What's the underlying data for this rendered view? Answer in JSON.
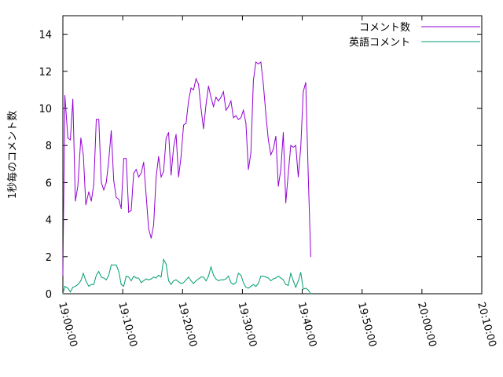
{
  "chart_data": {
    "type": "line",
    "title": "",
    "xlabel": "",
    "ylabel": "1秒毎のコメント数",
    "ylim": [
      0,
      15
    ],
    "yticks": [
      "0",
      "2",
      "4",
      "6",
      "8",
      "10",
      "12",
      "14"
    ],
    "xlim": [
      "19:00:00",
      "20:10:00"
    ],
    "xticks": [
      "19:00:00",
      "19:10:00",
      "19:20:00",
      "19:30:00",
      "19:40:00",
      "19:50:00",
      "20:00:00",
      "20:10:00"
    ],
    "grid": false,
    "legend_position": "top-right",
    "series": [
      {
        "name": "コメント数",
        "color": "#9400d3",
        "points": [
          [
            "19:00:00",
            1.0
          ],
          [
            "19:00:20",
            10.7
          ],
          [
            "19:00:50",
            8.4
          ],
          [
            "19:01:15",
            8.3
          ],
          [
            "19:01:40",
            10.5
          ],
          [
            "19:02:05",
            5.0
          ],
          [
            "19:02:30",
            5.8
          ],
          [
            "19:03:00",
            8.4
          ],
          [
            "19:03:25",
            7.5
          ],
          [
            "19:03:50",
            4.8
          ],
          [
            "19:04:20",
            5.5
          ],
          [
            "19:04:45",
            5.0
          ],
          [
            "19:05:10",
            5.9
          ],
          [
            "19:05:35",
            9.4
          ],
          [
            "19:06:00",
            9.4
          ],
          [
            "19:06:25",
            6.0
          ],
          [
            "19:06:50",
            5.6
          ],
          [
            "19:07:15",
            6.0
          ],
          [
            "19:07:40",
            7.2
          ],
          [
            "19:08:05",
            8.8
          ],
          [
            "19:08:30",
            6.1
          ],
          [
            "19:08:55",
            5.2
          ],
          [
            "19:09:20",
            5.1
          ],
          [
            "19:09:45",
            4.6
          ],
          [
            "19:10:10",
            7.3
          ],
          [
            "19:10:35",
            7.3
          ],
          [
            "19:11:00",
            4.4
          ],
          [
            "19:11:25",
            4.5
          ],
          [
            "19:11:50",
            6.5
          ],
          [
            "19:12:15",
            6.7
          ],
          [
            "19:12:40",
            6.3
          ],
          [
            "19:13:05",
            6.5
          ],
          [
            "19:13:30",
            7.1
          ],
          [
            "19:13:55",
            5.3
          ],
          [
            "19:14:20",
            3.5
          ],
          [
            "19:14:45",
            3.0
          ],
          [
            "19:15:10",
            3.7
          ],
          [
            "19:15:35",
            6.3
          ],
          [
            "19:16:00",
            7.4
          ],
          [
            "19:16:25",
            6.3
          ],
          [
            "19:16:50",
            6.6
          ],
          [
            "19:17:15",
            8.4
          ],
          [
            "19:17:40",
            8.7
          ],
          [
            "19:18:05",
            6.4
          ],
          [
            "19:18:30",
            7.9
          ],
          [
            "19:18:55",
            8.6
          ],
          [
            "19:19:20",
            6.3
          ],
          [
            "19:19:45",
            7.4
          ],
          [
            "19:20:10",
            9.1
          ],
          [
            "19:20:35",
            9.2
          ],
          [
            "19:21:00",
            10.4
          ],
          [
            "19:21:25",
            11.1
          ],
          [
            "19:21:50",
            11.0
          ],
          [
            "19:22:15",
            11.6
          ],
          [
            "19:22:40",
            11.3
          ],
          [
            "19:23:05",
            10.0
          ],
          [
            "19:23:30",
            8.9
          ],
          [
            "19:23:55",
            10.2
          ],
          [
            "19:24:20",
            11.2
          ],
          [
            "19:24:45",
            10.6
          ],
          [
            "19:25:10",
            10.1
          ],
          [
            "19:25:35",
            10.6
          ],
          [
            "19:26:00",
            10.4
          ],
          [
            "19:26:25",
            10.6
          ],
          [
            "19:26:50",
            10.9
          ],
          [
            "19:27:15",
            9.9
          ],
          [
            "19:27:40",
            10.1
          ],
          [
            "19:28:05",
            10.4
          ],
          [
            "19:28:30",
            9.5
          ],
          [
            "19:28:55",
            9.6
          ],
          [
            "19:29:20",
            9.4
          ],
          [
            "19:29:45",
            9.5
          ],
          [
            "19:30:10",
            9.9
          ],
          [
            "19:30:35",
            9.2
          ],
          [
            "19:31:00",
            6.7
          ],
          [
            "19:31:25",
            7.6
          ],
          [
            "19:31:50",
            11.5
          ],
          [
            "19:32:15",
            12.5
          ],
          [
            "19:32:40",
            12.4
          ],
          [
            "19:33:05",
            12.5
          ],
          [
            "19:33:30",
            11.3
          ],
          [
            "19:33:55",
            9.7
          ],
          [
            "19:34:20",
            8.3
          ],
          [
            "19:34:45",
            7.5
          ],
          [
            "19:35:10",
            7.8
          ],
          [
            "19:35:35",
            8.5
          ],
          [
            "19:36:00",
            5.8
          ],
          [
            "19:36:25",
            6.7
          ],
          [
            "19:36:50",
            8.7
          ],
          [
            "19:37:15",
            4.9
          ],
          [
            "19:37:40",
            6.5
          ],
          [
            "19:38:05",
            8.0
          ],
          [
            "19:38:30",
            7.9
          ],
          [
            "19:38:55",
            8.0
          ],
          [
            "19:39:20",
            6.3
          ],
          [
            "19:39:45",
            7.9
          ],
          [
            "19:40:10",
            10.9
          ],
          [
            "19:40:35",
            11.4
          ],
          [
            "19:41:00",
            6.4
          ],
          [
            "19:41:25",
            2.0
          ]
        ]
      },
      {
        "name": "英語コメント",
        "color": "#009e73",
        "points": [
          [
            "19:00:00",
            0.0
          ],
          [
            "19:00:20",
            0.4
          ],
          [
            "19:00:50",
            0.3
          ],
          [
            "19:01:15",
            0.1
          ],
          [
            "19:01:40",
            0.35
          ],
          [
            "19:02:05",
            0.4
          ],
          [
            "19:02:30",
            0.5
          ],
          [
            "19:03:00",
            0.7
          ],
          [
            "19:03:25",
            1.1
          ],
          [
            "19:03:50",
            0.7
          ],
          [
            "19:04:20",
            0.4
          ],
          [
            "19:04:45",
            0.5
          ],
          [
            "19:05:10",
            0.5
          ],
          [
            "19:05:35",
            1.0
          ],
          [
            "19:06:00",
            1.2
          ],
          [
            "19:06:25",
            0.9
          ],
          [
            "19:06:50",
            0.85
          ],
          [
            "19:07:15",
            0.75
          ],
          [
            "19:07:40",
            1.0
          ],
          [
            "19:08:05",
            1.55
          ],
          [
            "19:08:30",
            1.55
          ],
          [
            "19:08:55",
            1.55
          ],
          [
            "19:09:20",
            1.2
          ],
          [
            "19:09:45",
            0.5
          ],
          [
            "19:10:10",
            0.4
          ],
          [
            "19:10:35",
            0.95
          ],
          [
            "19:11:00",
            0.9
          ],
          [
            "19:11:25",
            0.7
          ],
          [
            "19:11:50",
            0.95
          ],
          [
            "19:12:15",
            0.85
          ],
          [
            "19:12:40",
            0.85
          ],
          [
            "19:13:05",
            0.6
          ],
          [
            "19:13:30",
            0.7
          ],
          [
            "19:13:55",
            0.8
          ],
          [
            "19:14:20",
            0.75
          ],
          [
            "19:14:45",
            0.8
          ],
          [
            "19:15:10",
            0.9
          ],
          [
            "19:15:35",
            0.85
          ],
          [
            "19:16:00",
            1.0
          ],
          [
            "19:16:25",
            0.9
          ],
          [
            "19:16:50",
            1.85
          ],
          [
            "19:17:15",
            1.6
          ],
          [
            "19:17:40",
            0.7
          ],
          [
            "19:18:05",
            0.5
          ],
          [
            "19:18:30",
            0.7
          ],
          [
            "19:18:55",
            0.75
          ],
          [
            "19:19:20",
            0.65
          ],
          [
            "19:19:45",
            0.55
          ],
          [
            "19:20:10",
            0.6
          ],
          [
            "19:20:35",
            0.75
          ],
          [
            "19:21:00",
            0.9
          ],
          [
            "19:21:25",
            0.7
          ],
          [
            "19:21:50",
            0.55
          ],
          [
            "19:22:15",
            0.7
          ],
          [
            "19:22:40",
            0.8
          ],
          [
            "19:23:05",
            0.9
          ],
          [
            "19:23:30",
            0.9
          ],
          [
            "19:23:55",
            0.7
          ],
          [
            "19:24:20",
            0.95
          ],
          [
            "19:24:45",
            1.45
          ],
          [
            "19:25:10",
            1.0
          ],
          [
            "19:25:35",
            0.8
          ],
          [
            "19:26:00",
            0.7
          ],
          [
            "19:26:25",
            0.75
          ],
          [
            "19:26:50",
            0.75
          ],
          [
            "19:27:15",
            0.8
          ],
          [
            "19:27:40",
            0.95
          ],
          [
            "19:28:05",
            0.6
          ],
          [
            "19:28:30",
            0.5
          ],
          [
            "19:28:55",
            0.6
          ],
          [
            "19:29:20",
            1.1
          ],
          [
            "19:29:45",
            1.0
          ],
          [
            "19:30:10",
            0.6
          ],
          [
            "19:30:35",
            0.35
          ],
          [
            "19:31:00",
            0.3
          ],
          [
            "19:31:25",
            0.4
          ],
          [
            "19:31:50",
            0.5
          ],
          [
            "19:32:15",
            0.4
          ],
          [
            "19:32:40",
            0.55
          ],
          [
            "19:33:05",
            0.95
          ],
          [
            "19:33:30",
            0.95
          ],
          [
            "19:33:55",
            0.9
          ],
          [
            "19:34:20",
            0.85
          ],
          [
            "19:34:45",
            0.7
          ],
          [
            "19:35:10",
            0.8
          ],
          [
            "19:35:35",
            0.85
          ],
          [
            "19:36:00",
            0.95
          ],
          [
            "19:36:25",
            0.85
          ],
          [
            "19:36:50",
            0.75
          ],
          [
            "19:37:15",
            0.5
          ],
          [
            "19:37:40",
            0.45
          ],
          [
            "19:38:05",
            1.1
          ],
          [
            "19:38:30",
            0.7
          ],
          [
            "19:38:55",
            0.35
          ],
          [
            "19:39:20",
            0.7
          ],
          [
            "19:39:45",
            1.15
          ],
          [
            "19:40:10",
            0.25
          ],
          [
            "19:40:35",
            0.3
          ],
          [
            "19:41:00",
            0.2
          ],
          [
            "19:41:25",
            0.0
          ]
        ]
      }
    ]
  }
}
